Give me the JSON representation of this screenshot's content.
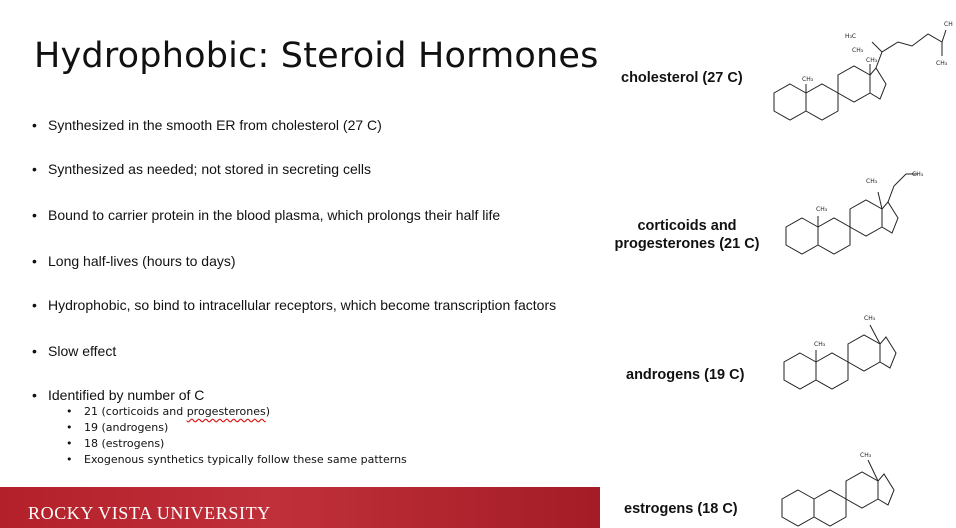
{
  "slide": {
    "title": "Hydrophobic: Steroid Hormones",
    "bullets": [
      "Synthesized in the smooth ER from cholesterol (27 C)",
      "Synthesized as needed; not stored in secreting cells",
      "Bound to carrier protein in the blood plasma, which prolongs their half life",
      "Long half-lives (hours to days)",
      "Hydrophobic, so bind to intracellular receptors, which become transcription factors",
      "Slow effect",
      "Identified by number of C"
    ],
    "sub_bullets": {
      "s1_prefix": "21 (corticoids and ",
      "s1_misspelled": "progesterones",
      "s1_suffix": ")",
      "s2": "19 (androgens)",
      "s3": "18 (estrogens)",
      "s4": "Exogenous synthetics typically follow these same patterns"
    },
    "footer": "ROCKY VISTA UNIVERSITY"
  },
  "molecules": {
    "cholesterol": {
      "label": "cholesterol (27 C)",
      "atoms": [
        "H₃C",
        "CH₃",
        "CH₃",
        "CH₃",
        "CH₃",
        "CH"
      ]
    },
    "corticoids": {
      "label_line1": "corticoids and",
      "label_line2": "progesterones (21 C)",
      "atoms": [
        "CH₃",
        "CH₃",
        "CH₃"
      ]
    },
    "androgens": {
      "label": "androgens (19 C)",
      "atoms": [
        "CH₃",
        "CH₃"
      ]
    },
    "estrogens": {
      "label": "estrogens (18 C)",
      "atoms": [
        "CH₃"
      ]
    }
  }
}
